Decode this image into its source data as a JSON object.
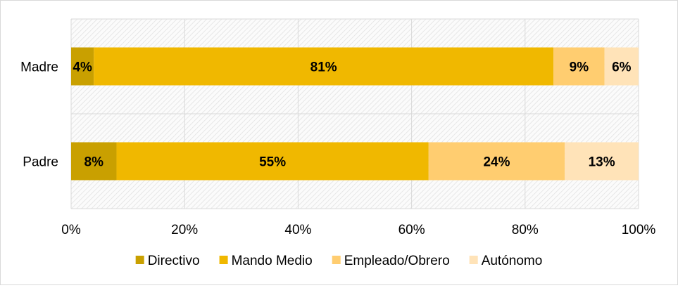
{
  "chart_data": {
    "type": "bar",
    "orientation": "horizontal",
    "stacked": "percent",
    "categories": [
      "Madre",
      "Padre"
    ],
    "series": [
      {
        "name": "Directivo",
        "values": [
          4,
          8
        ],
        "labels": [
          "4%",
          "8%"
        ],
        "color": "#c9a000"
      },
      {
        "name": "Mando Medio",
        "values": [
          81,
          55
        ],
        "labels": [
          "81%",
          "55%"
        ],
        "color": "#f0b800"
      },
      {
        "name": "Empleado/Obrero",
        "values": [
          9,
          24
        ],
        "labels": [
          "9%",
          "24%"
        ],
        "color": "#ffcd70"
      },
      {
        "name": "Autónomo",
        "values": [
          6,
          13
        ],
        "labels": [
          "6%",
          "13%"
        ],
        "color": "#ffe3b8"
      }
    ],
    "xlim": [
      0,
      100
    ],
    "xticks": [
      0,
      20,
      40,
      60,
      80,
      100
    ],
    "xtick_labels": [
      "0%",
      "20%",
      "40%",
      "60%",
      "80%",
      "100%"
    ],
    "grid": true,
    "legend_position": "bottom"
  }
}
